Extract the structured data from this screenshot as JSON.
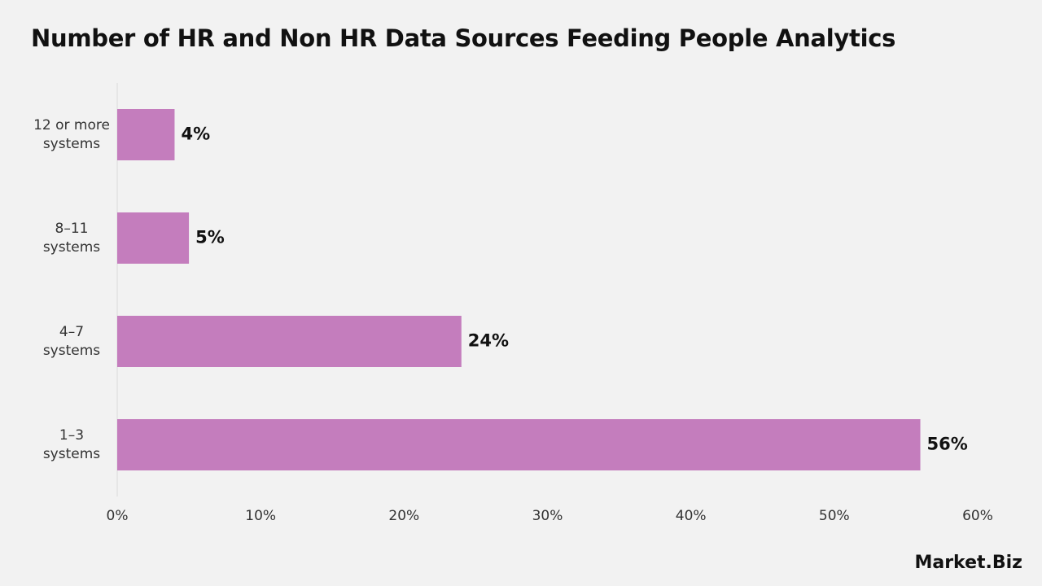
{
  "chart_data": {
    "type": "barh",
    "title": "Number of HR and Non HR Data Sources Feeding People Analytics",
    "categories": [
      "12 or more systems",
      "8–11 systems",
      "4–7 systems",
      "1–3 systems"
    ],
    "values": [
      4,
      5,
      24,
      56
    ],
    "value_labels": [
      "4%",
      "5%",
      "24%",
      "56%"
    ],
    "color": "#c47dbd",
    "xlim": [
      0,
      60
    ],
    "xticks": [
      {
        "value": 0,
        "label": "0%"
      },
      {
        "value": 10,
        "label": "10%"
      },
      {
        "value": 20,
        "label": "20%"
      },
      {
        "value": 30,
        "label": "30%"
      },
      {
        "value": 40,
        "label": "40%"
      },
      {
        "value": 50,
        "label": "50%"
      },
      {
        "value": 60,
        "label": "60%"
      }
    ],
    "grid": false
  },
  "logo": "Market.Biz"
}
